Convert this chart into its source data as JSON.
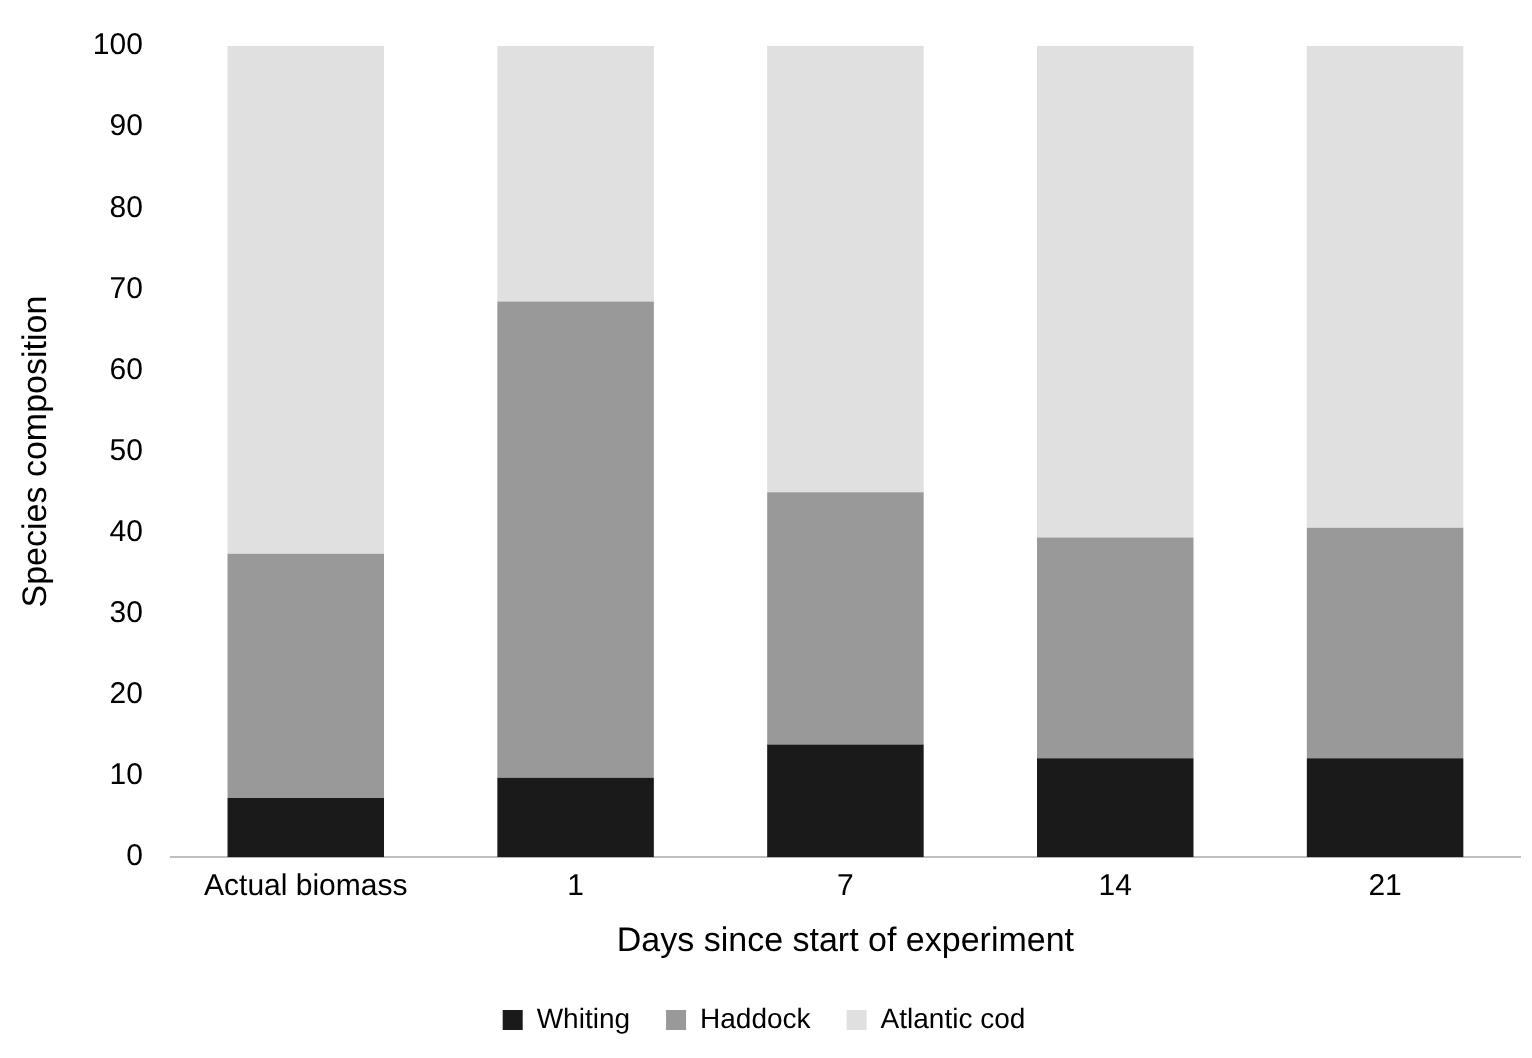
{
  "chart_data": {
    "type": "bar",
    "stacked": true,
    "xlabel": "Days since start of experiment",
    "ylabel": "Species composition",
    "categories": [
      "Actual biomass",
      "1",
      "7",
      "14",
      "21"
    ],
    "series": [
      {
        "name": "Whiting",
        "color": "#1a1a1a",
        "values": [
          7.3,
          9.8,
          13.9,
          12.2,
          12.2
        ]
      },
      {
        "name": "Haddock",
        "color": "#999999",
        "values": [
          30.1,
          58.7,
          31.1,
          27.2,
          28.4
        ]
      },
      {
        "name": "Atlantic cod",
        "color": "#e0e0e0",
        "values": [
          62.6,
          31.5,
          55,
          60.6,
          59.4
        ]
      }
    ],
    "ylim": [
      0,
      100
    ],
    "yticks": [
      0,
      10,
      20,
      30,
      40,
      50,
      60,
      70,
      80,
      90,
      100
    ],
    "grid": false,
    "legend": "bottom"
  }
}
